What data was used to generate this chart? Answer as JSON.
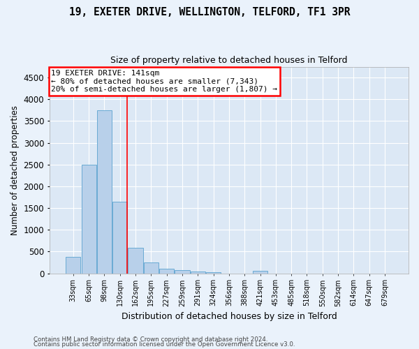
{
  "title1": "19, EXETER DRIVE, WELLINGTON, TELFORD, TF1 3PR",
  "title2": "Size of property relative to detached houses in Telford",
  "xlabel": "Distribution of detached houses by size in Telford",
  "ylabel": "Number of detached properties",
  "categories": [
    "33sqm",
    "65sqm",
    "98sqm",
    "130sqm",
    "162sqm",
    "195sqm",
    "227sqm",
    "259sqm",
    "291sqm",
    "324sqm",
    "356sqm",
    "388sqm",
    "421sqm",
    "453sqm",
    "485sqm",
    "518sqm",
    "550sqm",
    "582sqm",
    "614sqm",
    "647sqm",
    "679sqm"
  ],
  "values": [
    375,
    2500,
    3750,
    1640,
    590,
    245,
    110,
    75,
    45,
    30,
    0,
    0,
    55,
    0,
    0,
    0,
    0,
    0,
    0,
    0,
    0
  ],
  "bar_color": "#b8d0ea",
  "bar_edge_color": "#6aaad4",
  "annotation_text": "19 EXETER DRIVE: 141sqm\n← 80% of detached houses are smaller (7,343)\n20% of semi-detached houses are larger (1,807) →",
  "ylim": [
    0,
    4750
  ],
  "yticks": [
    0,
    500,
    1000,
    1500,
    2000,
    2500,
    3000,
    3500,
    4000,
    4500
  ],
  "plot_bg_color": "#dce8f5",
  "fig_bg_color": "#eaf2fb",
  "grid_color": "#ffffff",
  "red_line_x": 3.45,
  "footer1": "Contains HM Land Registry data © Crown copyright and database right 2024.",
  "footer2": "Contains public sector information licensed under the Open Government Licence v3.0."
}
